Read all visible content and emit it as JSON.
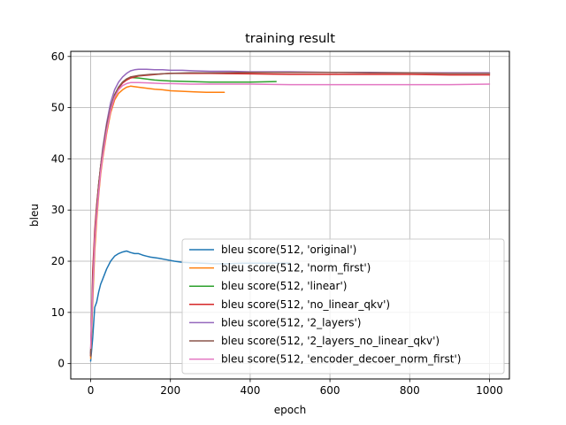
{
  "chart_data": {
    "type": "line",
    "title": "training result",
    "xlabel": "epoch",
    "ylabel": "bleu",
    "xlim": [
      -50,
      1050
    ],
    "ylim": [
      -3,
      61
    ],
    "xticks": [
      0,
      200,
      400,
      600,
      800,
      1000
    ],
    "yticks": [
      0,
      10,
      20,
      30,
      40,
      50,
      60
    ],
    "xtick_labels": [
      "0",
      "200",
      "400",
      "600",
      "800",
      "1000"
    ],
    "ytick_labels": [
      "0",
      "10",
      "20",
      "30",
      "40",
      "50",
      "60"
    ],
    "grid": true,
    "legend_position": "lower-right",
    "series": [
      {
        "name": "bleu score(512, 'original')",
        "color": "#1f77b4",
        "x": [
          0,
          5,
          10,
          15,
          20,
          25,
          30,
          40,
          50,
          60,
          70,
          80,
          90,
          100,
          110,
          120,
          130,
          140,
          150,
          170,
          190,
          210,
          230,
          250,
          280,
          310,
          340,
          380,
          420,
          460,
          500
        ],
        "y": [
          0.5,
          5,
          11,
          12,
          14,
          15.5,
          16.5,
          18.5,
          20,
          21,
          21.5,
          21.8,
          22,
          21.7,
          21.5,
          21.5,
          21.2,
          21,
          20.8,
          20.6,
          20.3,
          20,
          19.8,
          19.7,
          19.6,
          19.5,
          19.5,
          19.6,
          19.6,
          19.6,
          19.6
        ]
      },
      {
        "name": "bleu score(512, 'norm_first')",
        "color": "#ff7f0e",
        "x": [
          0,
          5,
          10,
          15,
          20,
          25,
          30,
          40,
          50,
          60,
          70,
          80,
          90,
          100,
          120,
          140,
          160,
          180,
          200,
          230,
          260,
          290,
          310,
          335
        ],
        "y": [
          1,
          12,
          22,
          28,
          33,
          37,
          40,
          45,
          49,
          51.5,
          52.8,
          53.5,
          54,
          54.2,
          54,
          53.8,
          53.6,
          53.5,
          53.3,
          53.2,
          53.1,
          53,
          53,
          53
        ]
      },
      {
        "name": "bleu score(512, 'linear')",
        "color": "#2ca02c",
        "x": [
          0,
          5,
          10,
          15,
          20,
          25,
          30,
          40,
          50,
          60,
          70,
          80,
          90,
          100,
          120,
          140,
          160,
          180,
          200,
          250,
          300,
          350,
          400,
          465
        ],
        "y": [
          2,
          14,
          24,
          30,
          35,
          38.5,
          41.5,
          46,
          50,
          52.5,
          54,
          55,
          55.6,
          55.9,
          55.8,
          55.6,
          55.4,
          55.3,
          55.2,
          55.1,
          55,
          55,
          55,
          55.1
        ]
      },
      {
        "name": "bleu score(512, 'no_linear_qkv')",
        "color": "#d62728",
        "x": [
          0,
          5,
          10,
          15,
          20,
          25,
          30,
          40,
          50,
          60,
          70,
          80,
          90,
          100,
          120,
          150,
          180,
          200,
          250,
          300,
          400,
          500,
          600,
          700,
          800,
          900,
          1000
        ],
        "y": [
          1.5,
          18,
          26,
          31,
          35,
          38.5,
          41.5,
          46,
          49.5,
          52,
          53.8,
          54.8,
          55.4,
          55.8,
          56.2,
          56.4,
          56.6,
          56.7,
          56.7,
          56.7,
          56.6,
          56.5,
          56.5,
          56.5,
          56.5,
          56.4,
          56.4
        ]
      },
      {
        "name": "bleu score(512, '2_layers')",
        "color": "#9467bd",
        "x": [
          0,
          5,
          10,
          15,
          20,
          25,
          30,
          40,
          50,
          60,
          70,
          80,
          90,
          100,
          110,
          120,
          140,
          160,
          180,
          200,
          230,
          260,
          300,
          350,
          400,
          500,
          600,
          700,
          800,
          900,
          1000
        ],
        "y": [
          2,
          15,
          24,
          30,
          34.5,
          38.5,
          42,
          47,
          51,
          53.5,
          55,
          56,
          56.7,
          57.2,
          57.4,
          57.5,
          57.5,
          57.4,
          57.4,
          57.3,
          57.3,
          57.2,
          57.1,
          57.1,
          57,
          57,
          56.9,
          56.9,
          56.8,
          56.8,
          56.8
        ]
      },
      {
        "name": "bleu score(512, '2_layers_no_linear_qkv')",
        "color": "#8c564b",
        "x": [
          0,
          5,
          10,
          15,
          20,
          25,
          30,
          40,
          50,
          60,
          70,
          80,
          90,
          100,
          120,
          150,
          180,
          200,
          250,
          300,
          400,
          500,
          600,
          700,
          800,
          900,
          1000
        ],
        "y": [
          1.5,
          16,
          25,
          30.5,
          35,
          38.5,
          41.5,
          46.5,
          50,
          52.5,
          54,
          55,
          55.6,
          56,
          56.3,
          56.5,
          56.6,
          56.7,
          56.8,
          56.8,
          56.9,
          56.9,
          56.9,
          56.8,
          56.8,
          56.7,
          56.7
        ]
      },
      {
        "name": "bleu score(512, 'encoder_decoer_norm_first')",
        "color": "#e377c2",
        "x": [
          0,
          5,
          10,
          15,
          20,
          25,
          30,
          40,
          50,
          60,
          70,
          80,
          90,
          100,
          120,
          150,
          180,
          200,
          250,
          300,
          400,
          500,
          600,
          700,
          800,
          900,
          1000
        ],
        "y": [
          3,
          14,
          24,
          29,
          33.5,
          37.5,
          40.5,
          45.5,
          49.5,
          52,
          53.5,
          54.3,
          54.7,
          54.9,
          54.9,
          54.8,
          54.7,
          54.7,
          54.6,
          54.6,
          54.6,
          54.5,
          54.5,
          54.5,
          54.5,
          54.5,
          54.6
        ]
      }
    ]
  }
}
